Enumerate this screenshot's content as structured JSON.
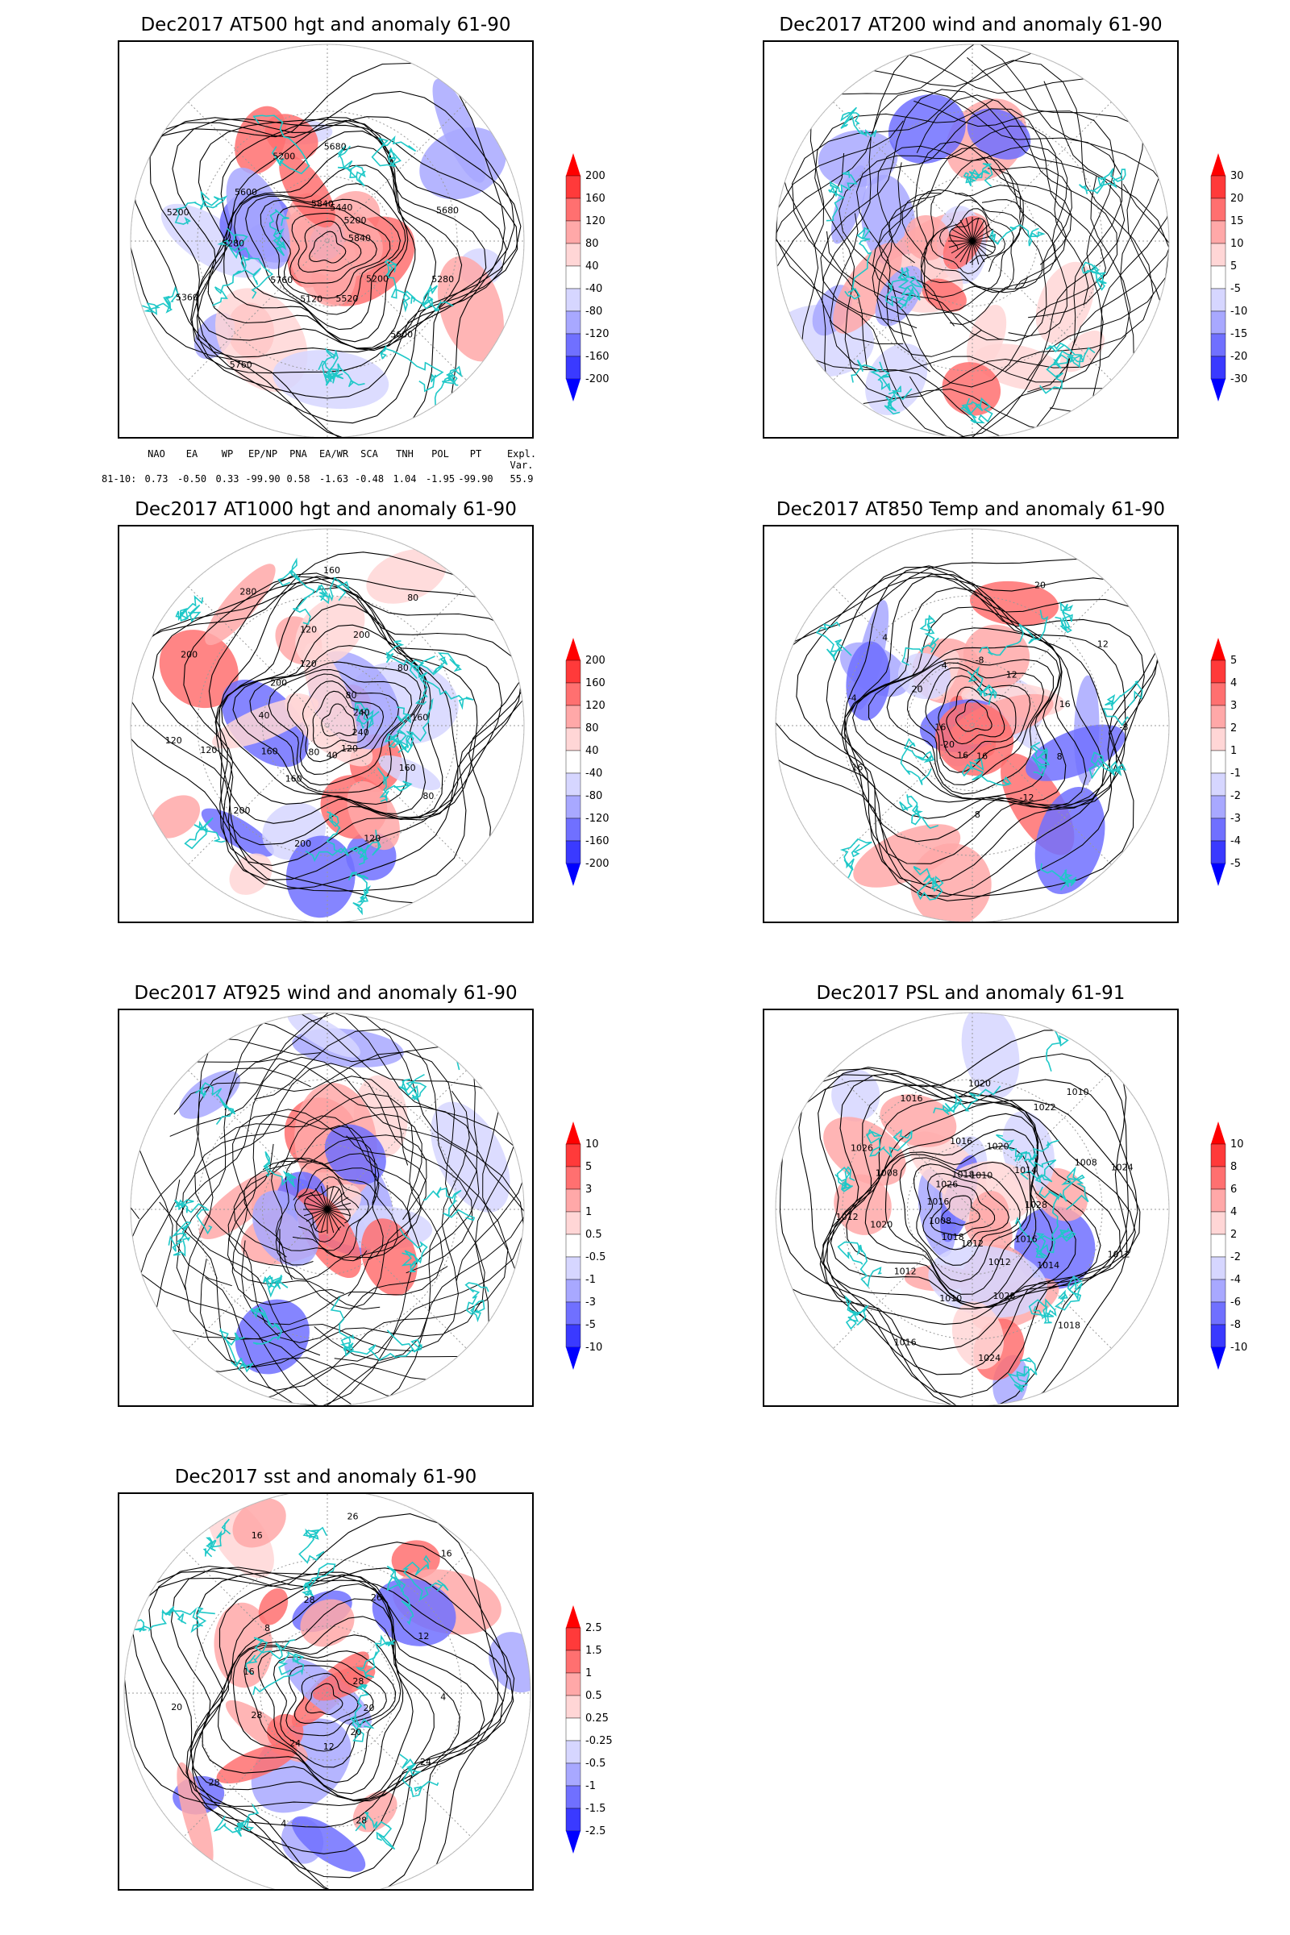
{
  "panels": [
    {
      "id": "at500",
      "title": "Dec2017 AT500 hgt and anomaly 61-90",
      "contour_labels": [
        "5840",
        "5760",
        "5680",
        "5600",
        "5200",
        "5200",
        "5120",
        "5200",
        "5280",
        "5360",
        "5440",
        "5520",
        "5600",
        "5680",
        "5760",
        "5840",
        "5200",
        "5280"
      ],
      "colorbar": [
        "200",
        "160",
        "120",
        "80",
        "40",
        "-40",
        "-80",
        "-120",
        "-160",
        "-200"
      ],
      "overlay": "contour"
    },
    {
      "id": "at200",
      "title": "Dec2017 AT200 wind and anomaly 61-90",
      "contour_labels": [],
      "colorbar": [
        "30",
        "20",
        "15",
        "10",
        "5",
        "-5",
        "-10",
        "-15",
        "-20",
        "-30"
      ],
      "overlay": "streamline"
    },
    {
      "id": "at1000",
      "title": "Dec2017 AT1000 hgt and anomaly 61-90",
      "contour_labels": [
        "80",
        "120",
        "160",
        "120",
        "80",
        "40",
        "200",
        "160",
        "200",
        "160",
        "120",
        "40",
        "80",
        "200",
        "280",
        "240",
        "160",
        "200",
        "120",
        "200",
        "240",
        "160",
        "120",
        "80",
        "120",
        "80"
      ],
      "colorbar": [
        "200",
        "160",
        "120",
        "80",
        "40",
        "-40",
        "-80",
        "-120",
        "-160",
        "-200"
      ],
      "overlay": "contour"
    },
    {
      "id": "at850",
      "title": "Dec2017 AT850 Temp and anomaly 61-90",
      "contour_labels": [
        "16",
        "12",
        "8",
        "4",
        "-8",
        "-20",
        "-8",
        "-12",
        "-4",
        "12",
        "16",
        "4",
        "8",
        "16",
        "20",
        "16",
        "20",
        "16"
      ],
      "colorbar": [
        "5",
        "4",
        "3",
        "2",
        "1",
        "-1",
        "-2",
        "-3",
        "-4",
        "-5"
      ],
      "overlay": "contour"
    },
    {
      "id": "at925",
      "title": "Dec2017 AT925 wind and anomaly 61-90",
      "contour_labels": [],
      "colorbar": [
        "10",
        "5",
        "3",
        "1",
        "0.5",
        "-0.5",
        "-1",
        "-3",
        "-5",
        "-10"
      ],
      "overlay": "streamline"
    },
    {
      "id": "psl",
      "title": "Dec2017 PSL and anomaly 61-91",
      "contour_labels": [
        "1010",
        "1012",
        "1008",
        "1008",
        "1016",
        "1018",
        "1016",
        "1020",
        "1022",
        "1024",
        "1026",
        "1028",
        "1012",
        "1020",
        "1018",
        "1016",
        "1014",
        "1010",
        "1016",
        "1012",
        "1008",
        "1020",
        "1028",
        "1026",
        "1024",
        "1018",
        "1016",
        "1014",
        "1012",
        "1010",
        "1012"
      ],
      "colorbar": [
        "10",
        "8",
        "6",
        "4",
        "2",
        "-2",
        "-4",
        "-6",
        "-8",
        "-10"
      ],
      "overlay": "contour"
    },
    {
      "id": "sst",
      "title": "Dec2017 sst and anomaly 61-90",
      "contour_labels": [
        "28",
        "24",
        "28",
        "24",
        "20",
        "16",
        "12",
        "8",
        "4",
        "28",
        "26",
        "20",
        "16",
        "12",
        "4",
        "16",
        "20",
        "28",
        "26",
        "28"
      ],
      "colorbar": [
        "2.5",
        "1.5",
        "1",
        "0.5",
        "0.25",
        "-0.25",
        "-0.5",
        "-1",
        "-1.5",
        "-2.5"
      ],
      "overlay": "contour"
    }
  ],
  "indices": {
    "headers": [
      "NAO",
      "EA",
      "WP",
      "EP/NP",
      "PNA",
      "EA/WR",
      "SCA",
      "TNH",
      "POL",
      "PT",
      "Expl. Var."
    ],
    "row_label": "81-10:",
    "values": [
      "0.73",
      "-0.50",
      "0.33",
      "-99.90",
      "0.58",
      "-1.63",
      "-0.48",
      "1.04",
      "-1.95",
      "-99.90",
      "55.9"
    ]
  },
  "colors": {
    "coast": "#1fc8c8",
    "contour": "#000000",
    "graticule": "#999999",
    "palette": [
      "#ff0000",
      "#ff3a3a",
      "#ff7070",
      "#ffa8a8",
      "#ffd6d6",
      "#ffffff",
      "#d6d6ff",
      "#a8a8ff",
      "#7070ff",
      "#3a3aff",
      "#0000ff"
    ]
  }
}
